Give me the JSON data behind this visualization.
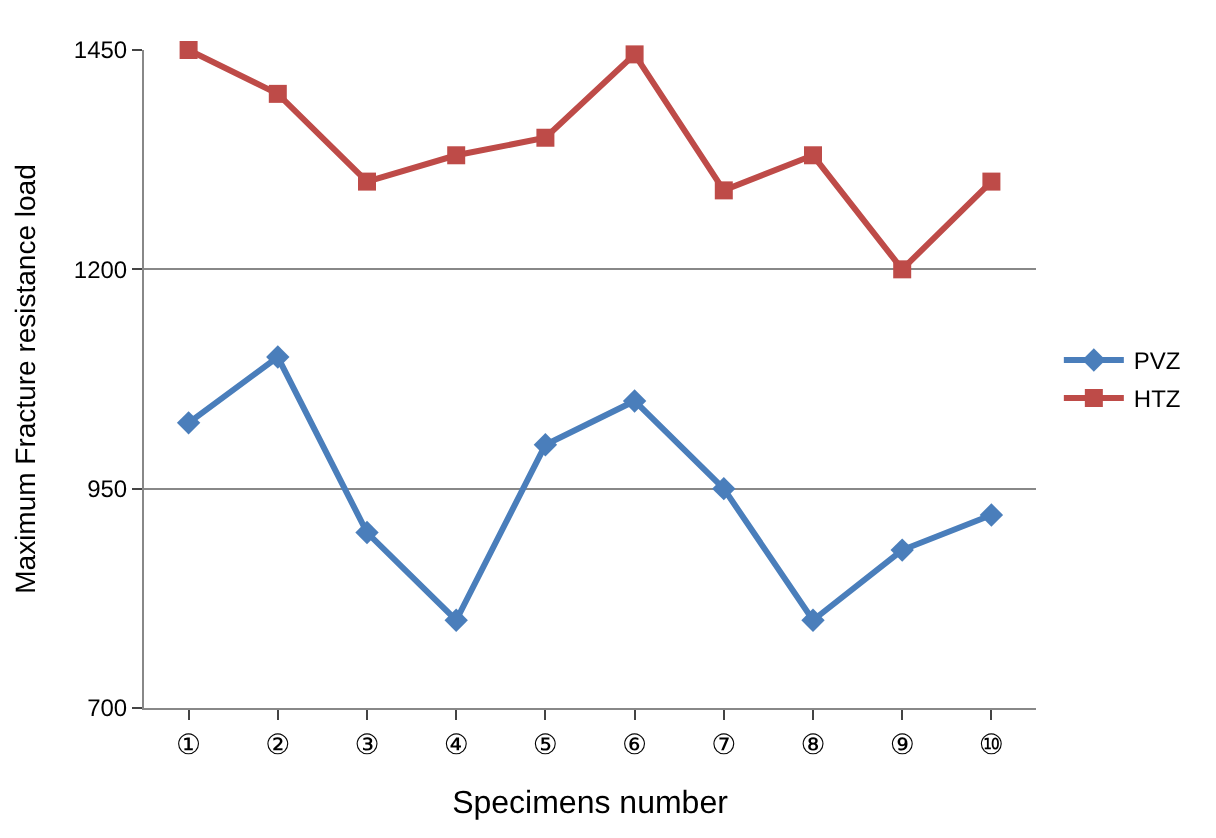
{
  "chart_data": {
    "type": "line",
    "xlabel": "Specimens number",
    "ylabel": "Maximum Fracture resistance load",
    "categories": [
      "①",
      "②",
      "③",
      "④",
      "⑤",
      "⑥",
      "⑦",
      "⑧",
      "⑨",
      "⑩"
    ],
    "series": [
      {
        "name": "PVZ",
        "color": "#4a7ebb",
        "marker": "diamond",
        "values": [
          1025,
          1100,
          900,
          800,
          1000,
          1050,
          950,
          800,
          880,
          920
        ]
      },
      {
        "name": "HTZ",
        "color": "#be4b48",
        "marker": "square",
        "values": [
          1450,
          1400,
          1300,
          1330,
          1350,
          1445,
          1290,
          1330,
          1200,
          1300
        ]
      }
    ],
    "ylim": [
      700,
      1450
    ],
    "yticks": [
      700,
      950,
      1200,
      1450
    ],
    "grid": "y",
    "legend": "right",
    "line_style": "solid"
  }
}
